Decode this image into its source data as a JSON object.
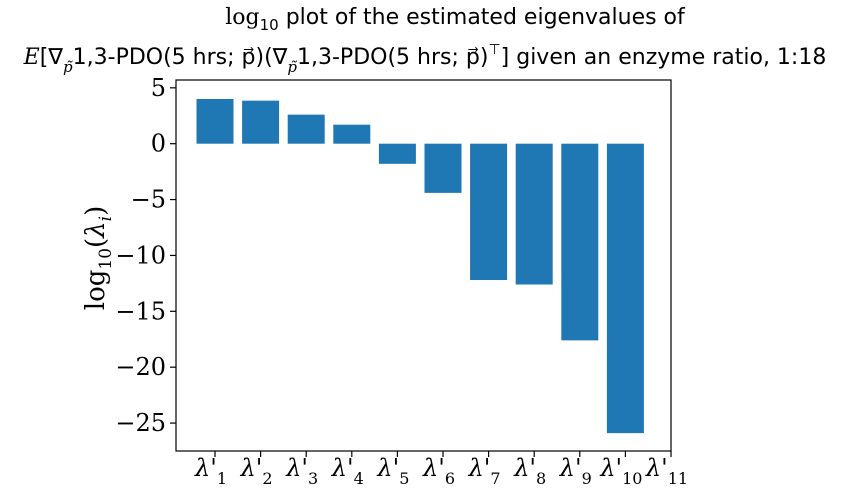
{
  "chart_data": {
    "type": "bar",
    "title_line1": "log10 plot of the estimated eigenvalues of",
    "title_line2": "E[∇p̃1,3-PDO(5 hrs;p⃗)(∇p̃1,3-PDO(5 hrs;p⃗)⊤] given an enzyme ratio, 1:18",
    "title_parts": {
      "log": "log",
      "log_sub": "10",
      "line1_rest": " plot of the estimated eigenvalues of",
      "E": "E",
      "open_bracket": "[∇",
      "nabla_sub": "p̃",
      "pdo_label": "1,3-PDO",
      "args": "(5 hrs; p⃗)",
      "close_mid": "(∇",
      "nabla_sub2": "p̃",
      "pdo_label2": "1,3-PDO",
      "args2": "(5 hrs; p⃗)",
      "transpose": "⊤",
      "close_bracket": "]",
      "ratio_text": " given an enzyme ratio, 1:18"
    },
    "ylabel": "log10(λi)",
    "ylabel_parts": {
      "log": "log",
      "sub": "10",
      "open": "(",
      "lambda": "λ",
      "i": "i",
      "close": ")"
    },
    "xlabel": "",
    "categories": [
      "λ'1",
      "λ'2",
      "λ'3",
      "λ'4",
      "λ'5",
      "λ'6",
      "λ'7",
      "λ'8",
      "λ'9",
      "λ'10",
      "λ'11"
    ],
    "category_subs": [
      "1",
      "2",
      "3",
      "4",
      "5",
      "6",
      "7",
      "8",
      "9",
      "10",
      "11"
    ],
    "values": [
      4.0,
      3.85,
      2.6,
      1.7,
      -1.8,
      -4.4,
      -12.2,
      -12.6,
      -17.6,
      -25.9,
      null
    ],
    "ylim": [
      -27.5,
      5.7
    ],
    "yticks": [
      5,
      0,
      -5,
      -10,
      -15,
      -20,
      -25
    ],
    "ytick_labels": [
      "5",
      "0",
      "−5",
      "−10",
      "−15",
      "−20",
      "−25"
    ],
    "bar_color": "#1f77b4",
    "grid": false,
    "legend": "none"
  }
}
